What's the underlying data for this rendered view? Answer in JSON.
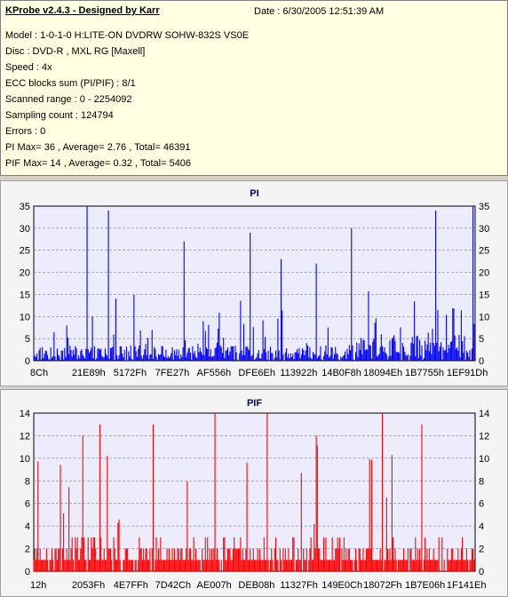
{
  "header": {
    "app_title": "KProbe v2.4.3 - Designed by Karr",
    "date": "Date : 6/30/2005 12:51:39 AM"
  },
  "info_lines": [
    "Model : 1-0-1-0 H:LITE-ON DVDRW SOHW-832S  VS0E",
    "Disc : DVD-R , MXL RG [Maxell]",
    "Speed : 4x",
    "ECC blocks sum (PI/PIF) : 8/1",
    "Scanned range : 0 - 2254092",
    "Sampling count : 124794",
    "Errors : 0",
    "PI Max= 36 , Average= 2.76 , Total= 46391",
    "PIF Max= 14 , Average= 0.32 , Total= 5406"
  ],
  "colors": {
    "pi_bars": "#0000ff",
    "pif_bars": "#ff0000",
    "plot_bg": "#ececfc",
    "grid": "#8080a0",
    "title_color": "#000080"
  },
  "chart_data": [
    {
      "type": "bar",
      "title": "PI",
      "ylim": [
        0,
        35
      ],
      "yticks": [
        0,
        5,
        10,
        15,
        20,
        25,
        30,
        35
      ],
      "x_tick_labels": [
        "8Ch",
        "21E89h",
        "5172Fh",
        "7FE27h",
        "AF556h",
        "DFE6Eh",
        "113922h",
        "14B0F8h",
        "18094Eh",
        "1B7755h",
        "1EF91Dh"
      ],
      "grid": true,
      "peaks": [
        {
          "x": 0.12,
          "y": 35
        },
        {
          "x": 0.17,
          "y": 34
        },
        {
          "x": 0.34,
          "y": 27
        },
        {
          "x": 0.49,
          "y": 29
        },
        {
          "x": 0.56,
          "y": 23
        },
        {
          "x": 0.64,
          "y": 22
        },
        {
          "x": 0.72,
          "y": 30
        },
        {
          "x": 0.91,
          "y": 34
        },
        {
          "x": 0.995,
          "y": 36
        }
      ],
      "max": 36,
      "average": 2.76
    },
    {
      "type": "bar",
      "title": "PIF",
      "ylim": [
        0,
        14
      ],
      "yticks": [
        0,
        2,
        4,
        6,
        8,
        10,
        12,
        14
      ],
      "x_tick_labels": [
        "12h",
        "2053Fh",
        "4E7FFh",
        "7D42Ch",
        "AE007h",
        "DEB08h",
        "11327Fh",
        "149E0Ch",
        "18072Fh",
        "1B7E06h",
        "1F141Eh"
      ],
      "grid": true,
      "peaks": [
        {
          "x": 0.11,
          "y": 12
        },
        {
          "x": 0.15,
          "y": 13
        },
        {
          "x": 0.27,
          "y": 13
        },
        {
          "x": 0.41,
          "y": 14
        },
        {
          "x": 0.53,
          "y": 14
        },
        {
          "x": 0.64,
          "y": 12
        },
        {
          "x": 0.79,
          "y": 14
        },
        {
          "x": 0.88,
          "y": 13
        }
      ],
      "max": 14,
      "average": 0.32
    }
  ]
}
